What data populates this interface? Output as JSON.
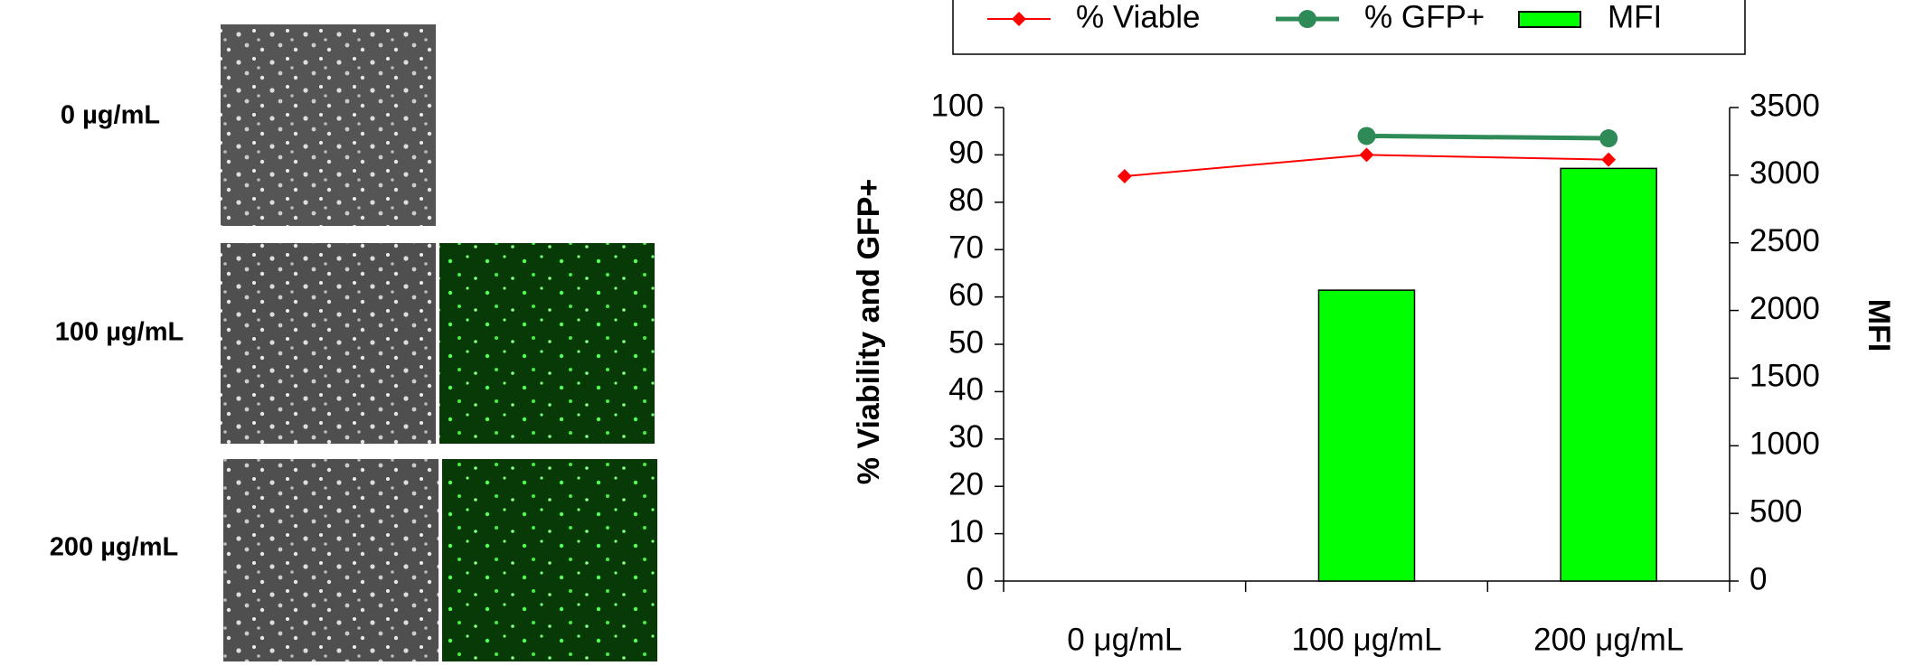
{
  "image_labels": [
    "0 µg/mL",
    "100 µg/mL",
    "200 µg/mL"
  ],
  "chart_data": {
    "type": "combo",
    "categories": [
      "0 μg/mL",
      "100 μg/mL",
      "200 μg/mL"
    ],
    "y_label": "% Viability and  GFP+",
    "y2_label": "MFI",
    "series": [
      {
        "name": "% Viable",
        "type": "line",
        "color": "#ff0000",
        "marker": "diamond",
        "values": [
          85.5,
          90,
          89
        ]
      },
      {
        "name": "% GFP+",
        "type": "line",
        "color": "#2e8b57",
        "marker": "circle",
        "values": [
          null,
          94,
          93.5
        ]
      },
      {
        "name": "MFI",
        "type": "bar",
        "color": "#00ff00",
        "axis": "y2",
        "values": [
          null,
          2150,
          3050
        ]
      }
    ],
    "ylim": [
      0,
      100
    ],
    "yticks": [
      0,
      10,
      20,
      30,
      40,
      50,
      60,
      70,
      80,
      90,
      100
    ],
    "y2lim": [
      0,
      3500
    ],
    "y2ticks": [
      0,
      500,
      1000,
      1500,
      2000,
      2500,
      3000,
      3500
    ],
    "legend": "top"
  }
}
